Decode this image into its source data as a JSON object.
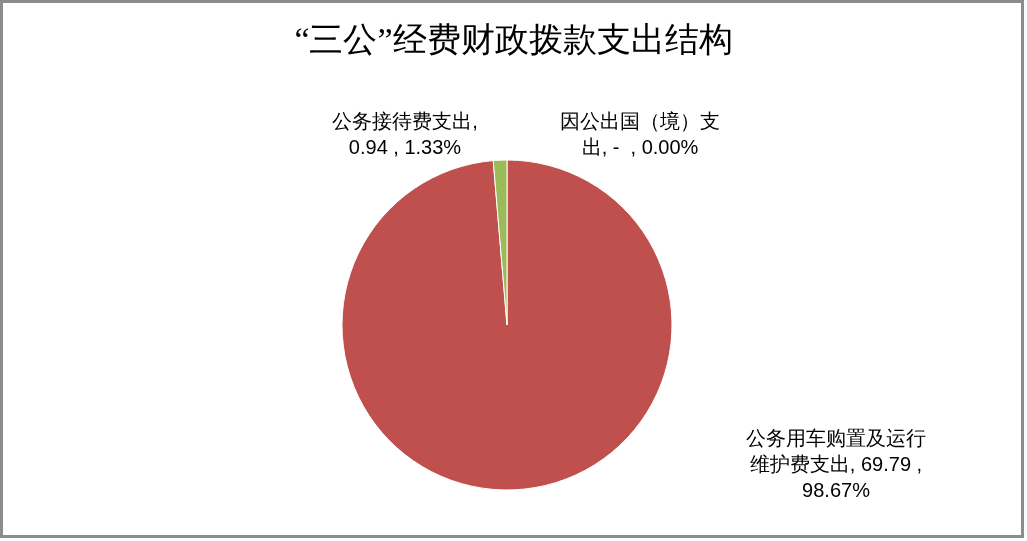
{
  "chart_data": {
    "type": "pie",
    "title": "“三公”经费财政拨款支出结构",
    "categories": [
      "因公出国（境）支出",
      "公务用车购置及运行维护费支出",
      "公务接待费支出"
    ],
    "values": [
      0,
      69.79,
      0.94
    ],
    "colors": [
      null,
      "#c0504d",
      "#9bbb59"
    ],
    "value_labels": [
      ", -  , 0.00%",
      ", 69.79 , 98.67%",
      ", 0.94 , 1.33%"
    ]
  }
}
